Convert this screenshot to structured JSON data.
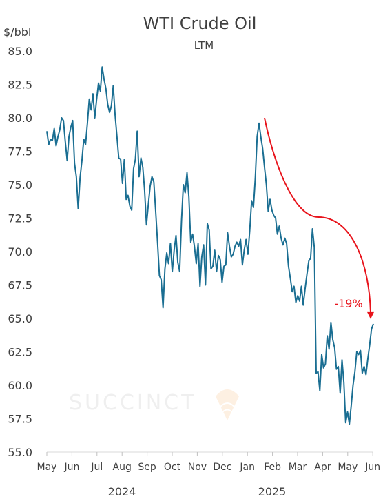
{
  "chart_data": {
    "type": "line",
    "title": "WTI Crude Oil",
    "subtitle": "LTM",
    "unit_label": "$/bbl",
    "watermark": "SUCCINCT",
    "ylim": [
      55.0,
      85.0
    ],
    "y_ticks": [
      "85.0",
      "82.5",
      "80.0",
      "77.5",
      "75.0",
      "72.5",
      "70.0",
      "67.5",
      "65.0",
      "62.5",
      "60.0",
      "57.5",
      "55.0"
    ],
    "x_ticks": [
      "May",
      "Jun",
      "Jul",
      "Aug",
      "Sep",
      "Oct",
      "Nov",
      "Dec",
      "Jan",
      "Feb",
      "Mar",
      "Apr",
      "May",
      "Jun"
    ],
    "years": [
      "2024",
      "2025"
    ],
    "grid": false,
    "legend": "none",
    "line_color": "#1a6e92",
    "annotation": {
      "label": "-19%",
      "color": "#e8141c",
      "from": 80.0,
      "to": 64.8
    },
    "series": [
      {
        "values": [
          79.0,
          78.0,
          78.4,
          78.3,
          79.2,
          77.9,
          78.6,
          79.1,
          80.0,
          79.8,
          78.2,
          76.8,
          78.6,
          79.3,
          79.8,
          76.6,
          75.6,
          73.2,
          75.5,
          76.8,
          78.4,
          78.0,
          79.6,
          81.4,
          80.6,
          81.8,
          80.0,
          81.4,
          82.6,
          82.0,
          83.8,
          82.9,
          82.2,
          81.0,
          80.4,
          80.9,
          82.4,
          80.2,
          78.6,
          77.0,
          76.9,
          75.1,
          76.9,
          73.9,
          74.2,
          73.4,
          73.1,
          76.2,
          76.9,
          79.0,
          75.6,
          77.0,
          76.3,
          74.6,
          72.0,
          73.5,
          74.9,
          75.6,
          75.2,
          73.0,
          70.7,
          68.2,
          67.9,
          65.8,
          68.7,
          69.9,
          69.1,
          70.6,
          68.5,
          70.1,
          71.2,
          69.2,
          68.5,
          72.3,
          75.0,
          74.4,
          75.9,
          74.1,
          70.7,
          71.3,
          70.4,
          69.1,
          70.6,
          67.4,
          69.6,
          70.5,
          67.5,
          72.1,
          71.6,
          68.7,
          68.9,
          70.1,
          68.5,
          69.7,
          69.4,
          67.7,
          68.9,
          69.0,
          71.4,
          70.4,
          69.6,
          69.8,
          70.4,
          70.7,
          70.4,
          70.9,
          69.0,
          70.1,
          70.9,
          69.8,
          71.6,
          73.8,
          73.3,
          75.5,
          78.6,
          79.6,
          78.6,
          77.7,
          76.3,
          75.0,
          73.0,
          73.9,
          73.1,
          72.7,
          72.5,
          71.3,
          71.9,
          71.0,
          70.5,
          71.0,
          70.6,
          68.9,
          68.0,
          67.0,
          67.4,
          66.2,
          66.7,
          66.3,
          67.4,
          66.0,
          67.2,
          68.3,
          69.3,
          69.5,
          71.7,
          70.3,
          60.9,
          61.0,
          59.6,
          62.3,
          61.3,
          61.6,
          63.7,
          62.7,
          64.7,
          63.4,
          62.8,
          61.2,
          61.4,
          59.4,
          61.9,
          60.2,
          57.2,
          58.0,
          57.1,
          58.5,
          60.0,
          61.0,
          62.5,
          62.3,
          62.6,
          60.9,
          61.4,
          60.8,
          62.0,
          63.0,
          64.2,
          64.6
        ]
      }
    ]
  }
}
